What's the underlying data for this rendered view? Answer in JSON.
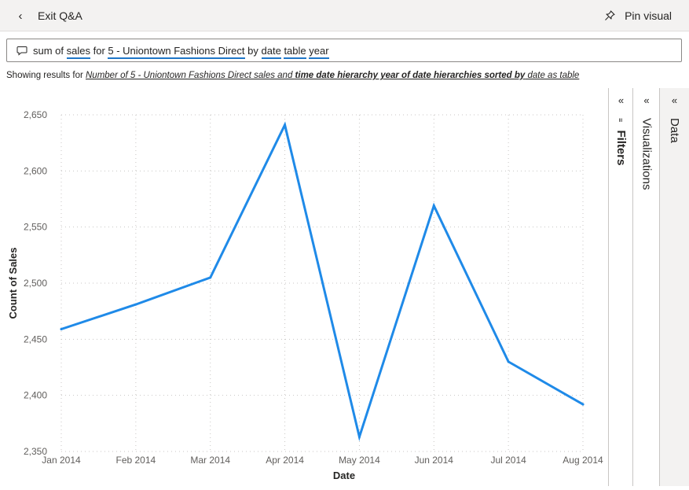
{
  "topbar": {
    "exit_label": "Exit Q&A",
    "pin_label": "Pin visual",
    "back_icon": "chevron-left-icon",
    "pin_icon": "pin-icon"
  },
  "qa": {
    "tokens": [
      {
        "text": "sum of ",
        "underline": false
      },
      {
        "text": "sales",
        "underline": true
      },
      {
        "text": " for ",
        "underline": false
      },
      {
        "text": "5 - Uniontown Fashions Direct",
        "underline": true
      },
      {
        "text": " by ",
        "underline": false
      },
      {
        "text": "date",
        "underline": true
      },
      {
        "text": " ",
        "underline": false
      },
      {
        "text": "table",
        "underline": true
      },
      {
        "text": " ",
        "underline": false
      },
      {
        "text": "year",
        "underline": true
      }
    ],
    "icon": "chat-icon"
  },
  "results": {
    "prefix": "Showing results for ",
    "part1": "Number of 5 - Uniontown Fashions Direct sales and ",
    "part2": "time date hierarchy year of date hierarchies sorted by",
    "part3": " date as table"
  },
  "panes": {
    "filters": "Filters",
    "visualizations": "Visualizations",
    "data": "Data",
    "collapse_glyph": "«"
  },
  "chart_data": {
    "type": "line",
    "categories": [
      "Jan 2014",
      "Feb 2014",
      "Mar 2014",
      "Apr 2014",
      "May 2014",
      "Jun 2014",
      "Jul 2014",
      "Aug 2014"
    ],
    "series": [
      {
        "values": [
          2459,
          2481,
          2505,
          2641,
          2363,
          2569,
          2430,
          2392
        ],
        "color": "#1f8ae8"
      }
    ],
    "xlabel": "Date",
    "ylabel": "Count of Sales",
    "yticks": [
      2350,
      2400,
      2450,
      2500,
      2550,
      2600,
      2650
    ],
    "ytick_labels": [
      "2,350",
      "2,400",
      "2,450",
      "2,500",
      "2,550",
      "2,600",
      "2,650"
    ],
    "ylim": [
      2350,
      2650
    ],
    "grid": true,
    "legend": "none"
  }
}
